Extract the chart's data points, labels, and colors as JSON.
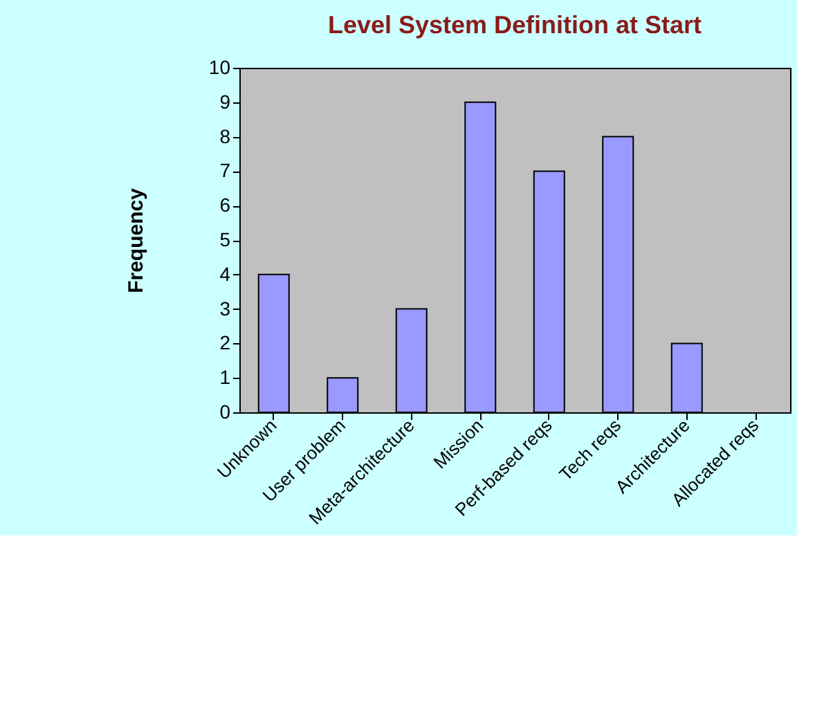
{
  "chart_data": {
    "type": "bar",
    "title": "Level System Definition at Start",
    "ylabel": "Frequency",
    "categories": [
      "Unknown",
      "User problem",
      "Meta-architecture",
      "Mission",
      "Perf-based reqs",
      "Tech reqs",
      "Architecture",
      "Allocated reqs"
    ],
    "values": [
      4,
      1,
      3,
      9,
      7,
      8,
      2,
      0
    ],
    "color": "#9999ff",
    "ylim": [
      0,
      10
    ],
    "yticks": [
      0,
      1,
      2,
      3,
      4,
      5,
      6,
      7,
      8,
      9,
      10
    ],
    "grid": false
  }
}
